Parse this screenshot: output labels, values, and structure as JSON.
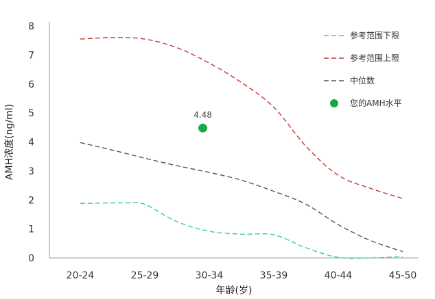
{
  "chart_data": {
    "type": "line",
    "xlabel": "年龄(岁)",
    "ylabel": "AMH浓度(ng/ml)",
    "categories": [
      "20-24",
      "25-29",
      "30-34",
      "35-39",
      "40-44",
      "45-50"
    ],
    "ylim": [
      0,
      8
    ],
    "yticks": [
      "0",
      "1",
      "2",
      "3",
      "4",
      "5",
      "6",
      "7",
      "8"
    ],
    "grid": false,
    "legend_position": "top-right",
    "series": [
      {
        "name": "参考范围下限",
        "color": "#3cc7b4",
        "dash": "dashed",
        "points": [
          [
            0,
            1.88
          ],
          [
            0.7,
            1.9
          ],
          [
            1,
            1.85
          ],
          [
            1.5,
            1.25
          ],
          [
            2,
            0.92
          ],
          [
            2.5,
            0.82
          ],
          [
            3,
            0.8
          ],
          [
            3.5,
            0.35
          ],
          [
            4,
            0.02
          ],
          [
            4.5,
            0.0
          ],
          [
            5,
            0.05
          ]
        ]
      },
      {
        "name": "参考范围上限",
        "color": "#c0373a",
        "dash": "dashed",
        "points": [
          [
            0,
            7.55
          ],
          [
            0.5,
            7.6
          ],
          [
            1,
            7.55
          ],
          [
            1.5,
            7.25
          ],
          [
            2,
            6.72
          ],
          [
            2.5,
            6.05
          ],
          [
            3,
            5.2
          ],
          [
            3.5,
            3.85
          ],
          [
            4,
            2.85
          ],
          [
            4.5,
            2.4
          ],
          [
            5,
            2.05
          ]
        ]
      },
      {
        "name": "中位数",
        "color": "#555555",
        "dash": "dashed",
        "points": [
          [
            0,
            3.98
          ],
          [
            0.5,
            3.72
          ],
          [
            1,
            3.44
          ],
          [
            1.5,
            3.18
          ],
          [
            2,
            2.95
          ],
          [
            2.5,
            2.68
          ],
          [
            3,
            2.3
          ],
          [
            3.5,
            1.85
          ],
          [
            4,
            1.15
          ],
          [
            4.5,
            0.6
          ],
          [
            5,
            0.22
          ]
        ]
      },
      {
        "name": "您的AMH水平",
        "color": "#17a84a",
        "type": "scatter",
        "points": [
          [
            1.9,
            4.48
          ]
        ]
      }
    ],
    "annotations": [
      {
        "text": "4.48",
        "x": 1.9,
        "y": 4.48
      }
    ]
  }
}
